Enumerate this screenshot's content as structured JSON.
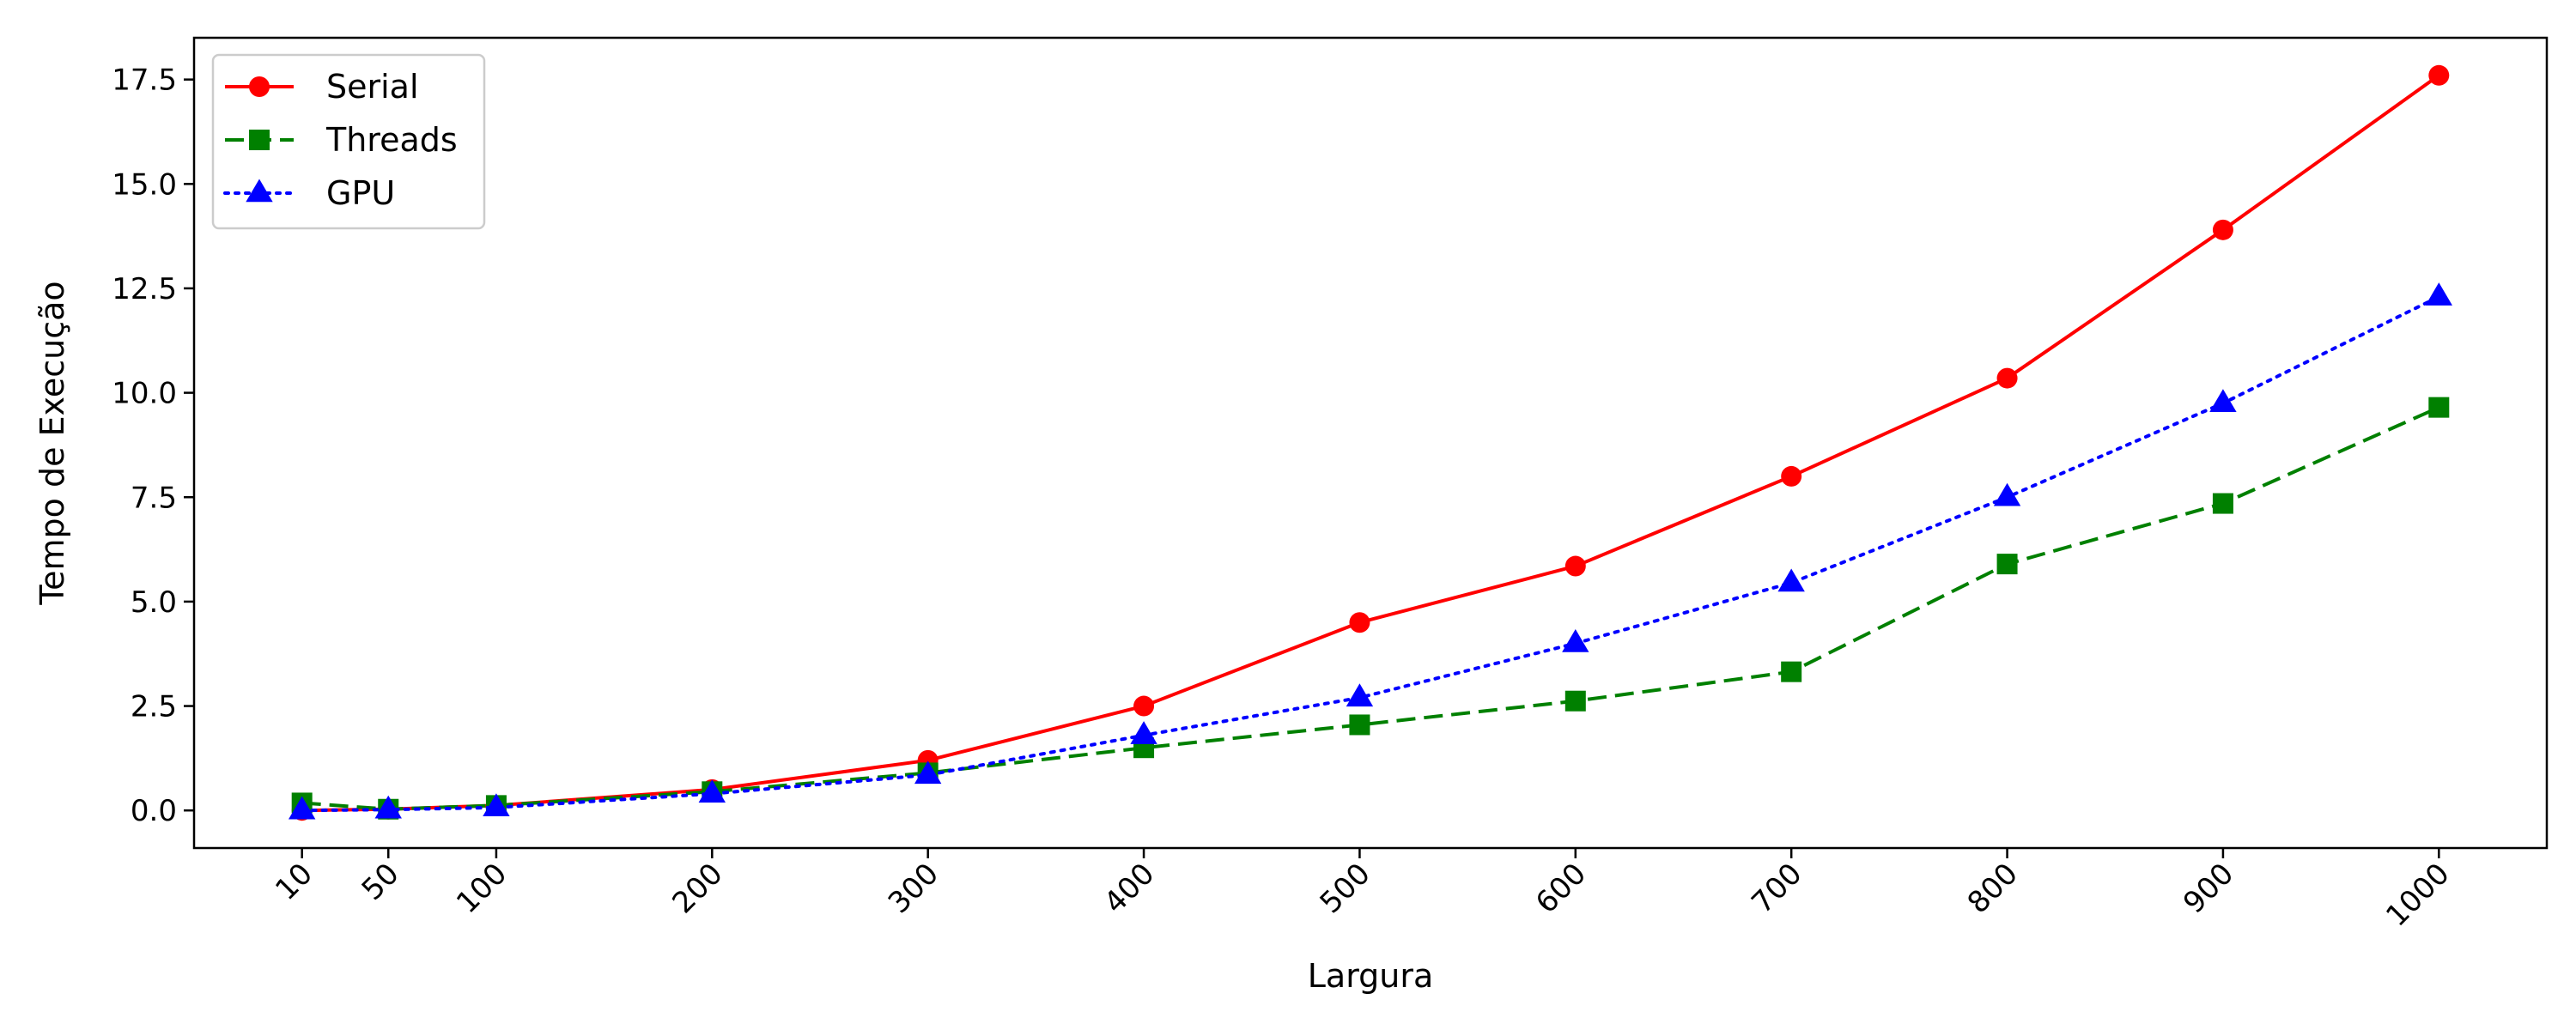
{
  "chart_data": {
    "type": "line",
    "title": "",
    "xlabel": "Largura",
    "ylabel": "Tempo de Execução",
    "x": [
      10,
      50,
      100,
      200,
      300,
      400,
      500,
      600,
      700,
      800,
      900,
      1000
    ],
    "x_tick_labels": [
      "10",
      "50",
      "100",
      "200",
      "300",
      "400",
      "500",
      "600",
      "700",
      "800",
      "900",
      "1000"
    ],
    "xlim": [
      -40,
      1050
    ],
    "ylim": [
      -0.9,
      18.5
    ],
    "y_ticks": [
      0.0,
      2.5,
      5.0,
      7.5,
      10.0,
      12.5,
      15.0,
      17.5
    ],
    "y_tick_labels": [
      "0.0",
      "2.5",
      "5.0",
      "7.5",
      "10.0",
      "12.5",
      "15.0",
      "17.5"
    ],
    "grid": false,
    "legend_position": "top-left",
    "series": [
      {
        "name": "Serial",
        "color": "#ff0000",
        "line_style": "solid",
        "marker": "circle",
        "values": [
          0.0,
          0.03,
          0.12,
          0.5,
          1.2,
          2.5,
          4.5,
          5.85,
          8.0,
          10.35,
          13.9,
          17.6
        ]
      },
      {
        "name": "Threads",
        "color": "#008000",
        "line_style": "dashed",
        "marker": "square",
        "values": [
          0.18,
          0.03,
          0.12,
          0.45,
          0.9,
          1.5,
          2.05,
          2.62,
          3.32,
          5.9,
          7.35,
          9.65
        ]
      },
      {
        "name": "GPU",
        "color": "#0000ff",
        "line_style": "dotted",
        "marker": "triangle",
        "values": [
          0.0,
          0.02,
          0.07,
          0.4,
          0.85,
          1.8,
          2.7,
          4.0,
          5.45,
          7.5,
          9.75,
          12.3
        ]
      }
    ]
  }
}
